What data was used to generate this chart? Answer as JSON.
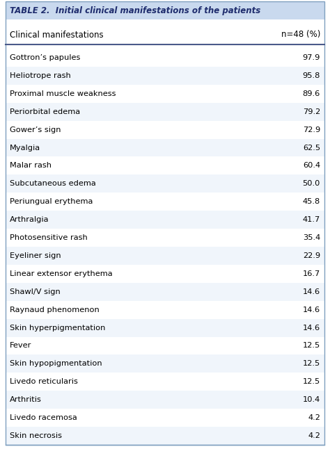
{
  "title": "TABLE 2.  Initial clinical manifestations of the patients",
  "col1_header": "Clinical manifestations",
  "col2_header": "n=48 (%)",
  "rows": [
    [
      "Gottron’s papules",
      "97.9"
    ],
    [
      "Heliotrope rash",
      "95.8"
    ],
    [
      "Proximal muscle weakness",
      "89.6"
    ],
    [
      "Periorbital edema",
      "79.2"
    ],
    [
      "Gower’s sign",
      "72.9"
    ],
    [
      "Myalgia",
      "62.5"
    ],
    [
      "Malar rash",
      "60.4"
    ],
    [
      "Subcutaneous edema",
      "50.0"
    ],
    [
      "Periungual erythema",
      "45.8"
    ],
    [
      "Arthralgia",
      "41.7"
    ],
    [
      "Photosensitive rash",
      "35.4"
    ],
    [
      "Eyeliner sign",
      "22.9"
    ],
    [
      "Linear extensor erythema",
      "16.7"
    ],
    [
      "Shawl/V sign",
      "14.6"
    ],
    [
      "Raynaud phenomenon",
      "14.6"
    ],
    [
      "Skin hyperpigmentation",
      "14.6"
    ],
    [
      "Fever",
      "12.5"
    ],
    [
      "Skin hypopigmentation",
      "12.5"
    ],
    [
      "Livedo reticularis",
      "12.5"
    ],
    [
      "Arthritis",
      "10.4"
    ],
    [
      "Livedo racemosa",
      "4.2"
    ],
    [
      "Skin necrosis",
      "4.2"
    ]
  ],
  "title_bg": "#c9d9ee",
  "title_color": "#1f2d6e",
  "header_bg": "#ffffff",
  "header_color": "#000000",
  "row_bg_odd": "#ffffff",
  "row_bg_even": "#ffffff",
  "outer_border_color": "#7f9fbf",
  "header_line_color": "#4a5a8a",
  "font_size": 8.2,
  "title_font_size": 8.5,
  "header_font_size": 8.5
}
